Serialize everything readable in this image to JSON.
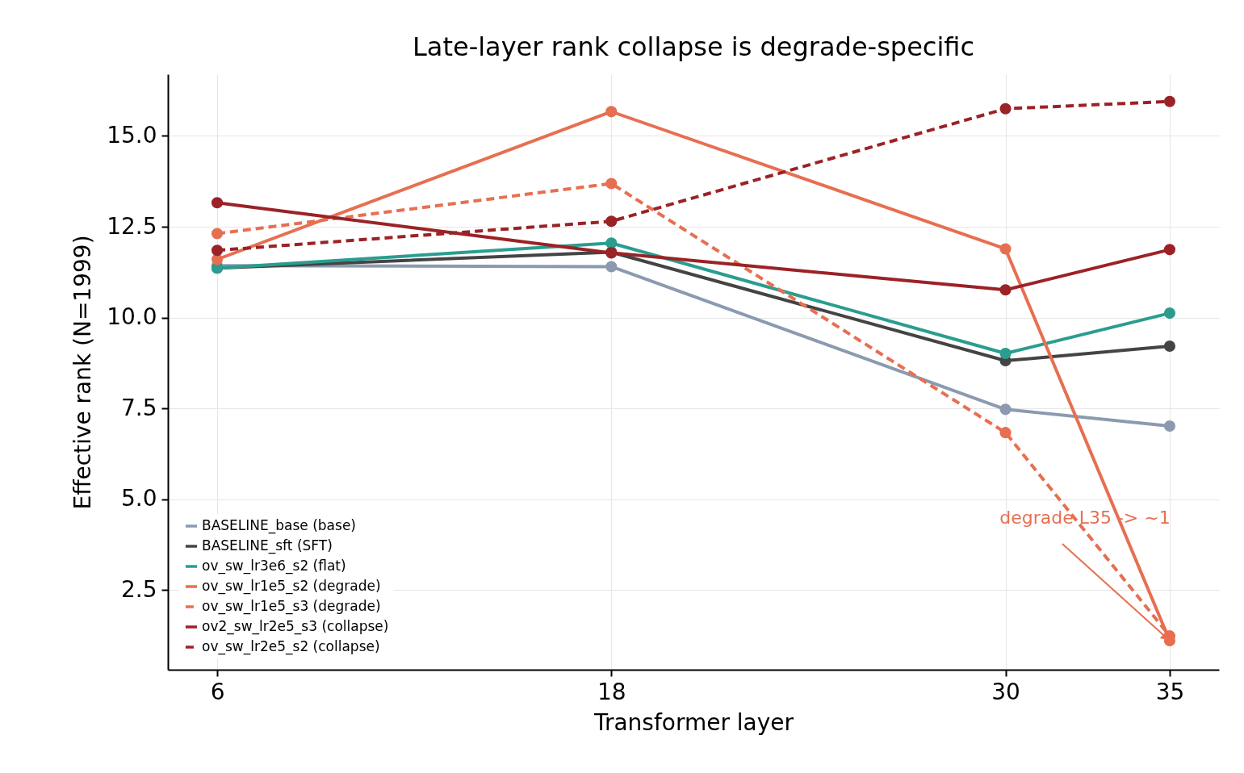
{
  "chart_data": {
    "type": "line",
    "title": "Late-layer rank collapse is degrade-specific",
    "xlabel": "Transformer layer",
    "ylabel": "Effective rank (N=1999)",
    "x": [
      6,
      18,
      30,
      35
    ],
    "xlim": [
      4.5,
      36.5
    ],
    "xticks": [
      6,
      18,
      30,
      35
    ],
    "ylim": [
      0.3,
      16.7
    ],
    "yticks": [
      2.5,
      {
        "value": 5,
        "label": "5.0"
      },
      7.5,
      {
        "value": 10,
        "label": "10.0"
      },
      12.5,
      {
        "value": 15,
        "label": "15.0"
      }
    ],
    "grid": true,
    "legend": "bottom left",
    "marker": "circle",
    "series": [
      {
        "name": "BASELINE_base (base)",
        "color": "#8c9ab0",
        "line_style": "solid",
        "values": [
          11.43,
          11.4,
          7.47,
          7.01
        ]
      },
      {
        "name": "BASELINE_sft (SFT)",
        "color": "#444444",
        "line_style": "solid",
        "values": [
          11.36,
          11.8,
          8.81,
          9.21
        ]
      },
      {
        "name": "ov_sw_lr3e6_s2 (flat)",
        "color": "#2a9d8f",
        "line_style": "solid",
        "values": [
          11.36,
          12.05,
          9.01,
          10.12
        ]
      },
      {
        "name": "ov_sw_lr1e5_s2 (degrade)",
        "color": "#e76f51",
        "line_style": "solid",
        "values": [
          11.6,
          15.67,
          11.89,
          1.1
        ]
      },
      {
        "name": "ov_sw_lr1e5_s3 (degrade)",
        "color": "#e76f51",
        "line_style": "dashed",
        "values": [
          12.31,
          13.69,
          6.83,
          1.23
        ]
      },
      {
        "name": "ov2_sw_lr2e5_s3 (collapse)",
        "color": "#9b2226",
        "line_style": "solid",
        "values": [
          13.16,
          11.78,
          10.76,
          11.87
        ]
      },
      {
        "name": "ov_sw_lr2e5_s2 (collapse)",
        "color": "#9b2226",
        "line_style": "dashed",
        "values": [
          11.85,
          12.65,
          15.75,
          15.95
        ]
      }
    ],
    "annotations": [
      {
        "text": "degrade L35 -> ~1",
        "x": 35,
        "y": 1.1
      }
    ]
  }
}
